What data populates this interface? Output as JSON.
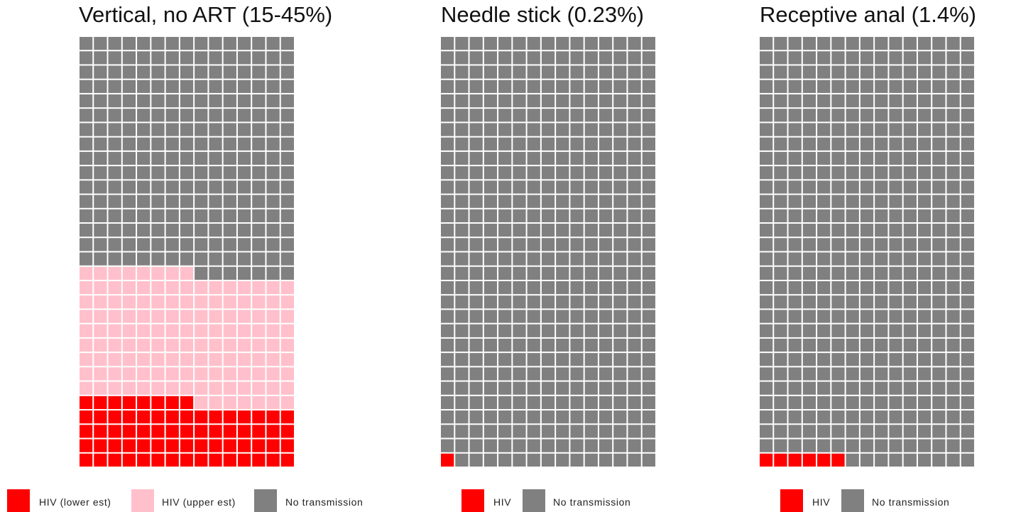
{
  "colors": {
    "hiv": "#ff0000",
    "hiv_upper": "#ffc0cb",
    "none": "#808080"
  },
  "chart_data": [
    {
      "type": "waffle",
      "title": "Vertical, no ART (15-45%)",
      "rows": 30,
      "cols": 15,
      "cells_total": 450,
      "categories": [
        {
          "label": "HIV (lower est)",
          "count": 68,
          "color": "#ff0000"
        },
        {
          "label": "HIV (upper est)",
          "count": 135,
          "color": "#ffc0cb"
        },
        {
          "label": "No transmission",
          "count": 247,
          "color": "#808080"
        }
      ],
      "legend": "bottom"
    },
    {
      "type": "waffle",
      "title": "Needle stick (0.23%)",
      "rows": 30,
      "cols": 15,
      "cells_total": 450,
      "categories": [
        {
          "label": "HIV",
          "count": 1,
          "color": "#ff0000"
        },
        {
          "label": "No transmission",
          "count": 449,
          "color": "#808080"
        }
      ],
      "legend": "bottom"
    },
    {
      "type": "waffle",
      "title": "Receptive anal (1.4%)",
      "rows": 30,
      "cols": 15,
      "cells_total": 450,
      "categories": [
        {
          "label": "HIV",
          "count": 6,
          "color": "#ff0000"
        },
        {
          "label": "No transmission",
          "count": 444,
          "color": "#808080"
        }
      ],
      "legend": "bottom"
    }
  ]
}
